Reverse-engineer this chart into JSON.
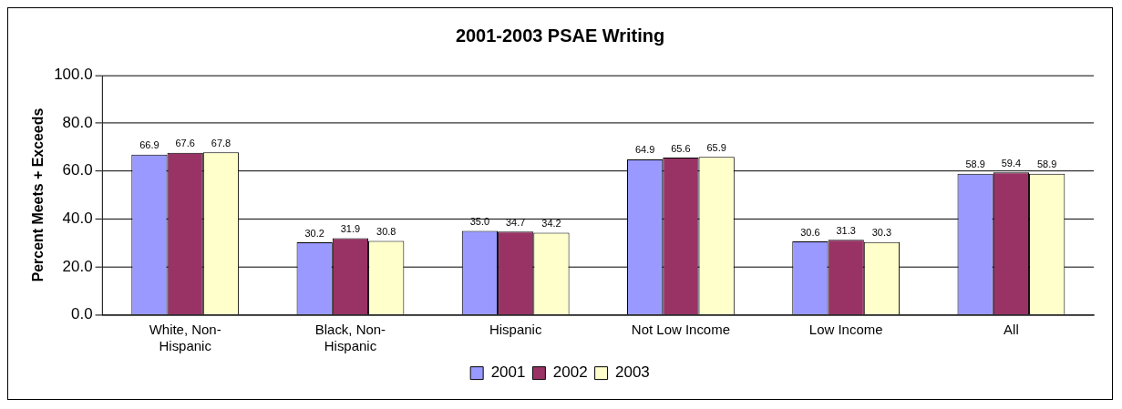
{
  "chart_data": {
    "type": "bar",
    "title": "2001-2003 PSAE Writing",
    "ylabel": "Percent Meets + Exceeds",
    "categories": [
      "White, Non-Hispanic",
      "Black, Non-Hispanic",
      "Hispanic",
      "Not Low Income",
      "Low Income",
      "All"
    ],
    "series": [
      {
        "name": "2001",
        "color": "#9999ff",
        "values": [
          66.9,
          30.2,
          35.0,
          64.9,
          30.6,
          58.9
        ],
        "value_labels": [
          "66.9",
          "30.2",
          "35.0",
          "64.9",
          "30.6",
          "58.9"
        ]
      },
      {
        "name": "2002",
        "color": "#993366",
        "values": [
          67.6,
          31.9,
          34.7,
          65.6,
          31.3,
          59.4
        ],
        "value_labels": [
          "67.6",
          "31.9",
          "34.7",
          "65.6",
          "31.3",
          "59.4"
        ]
      },
      {
        "name": "2003",
        "color": "#ffffcc",
        "values": [
          67.8,
          30.8,
          34.2,
          65.9,
          30.3,
          58.9
        ],
        "value_labels": [
          "67.8",
          "30.8",
          "34.2",
          "65.9",
          "30.3",
          "58.9"
        ]
      }
    ],
    "ylim": [
      0,
      100
    ],
    "yticks": [
      {
        "value": 0,
        "label": "0.0"
      },
      {
        "value": 20,
        "label": "20.0"
      },
      {
        "value": 40,
        "label": "40.0"
      },
      {
        "value": 60,
        "label": "60.0"
      },
      {
        "value": 80,
        "label": "80.0"
      },
      {
        "value": 100,
        "label": "100.0"
      }
    ],
    "grid": "y",
    "legend": "bottom"
  }
}
